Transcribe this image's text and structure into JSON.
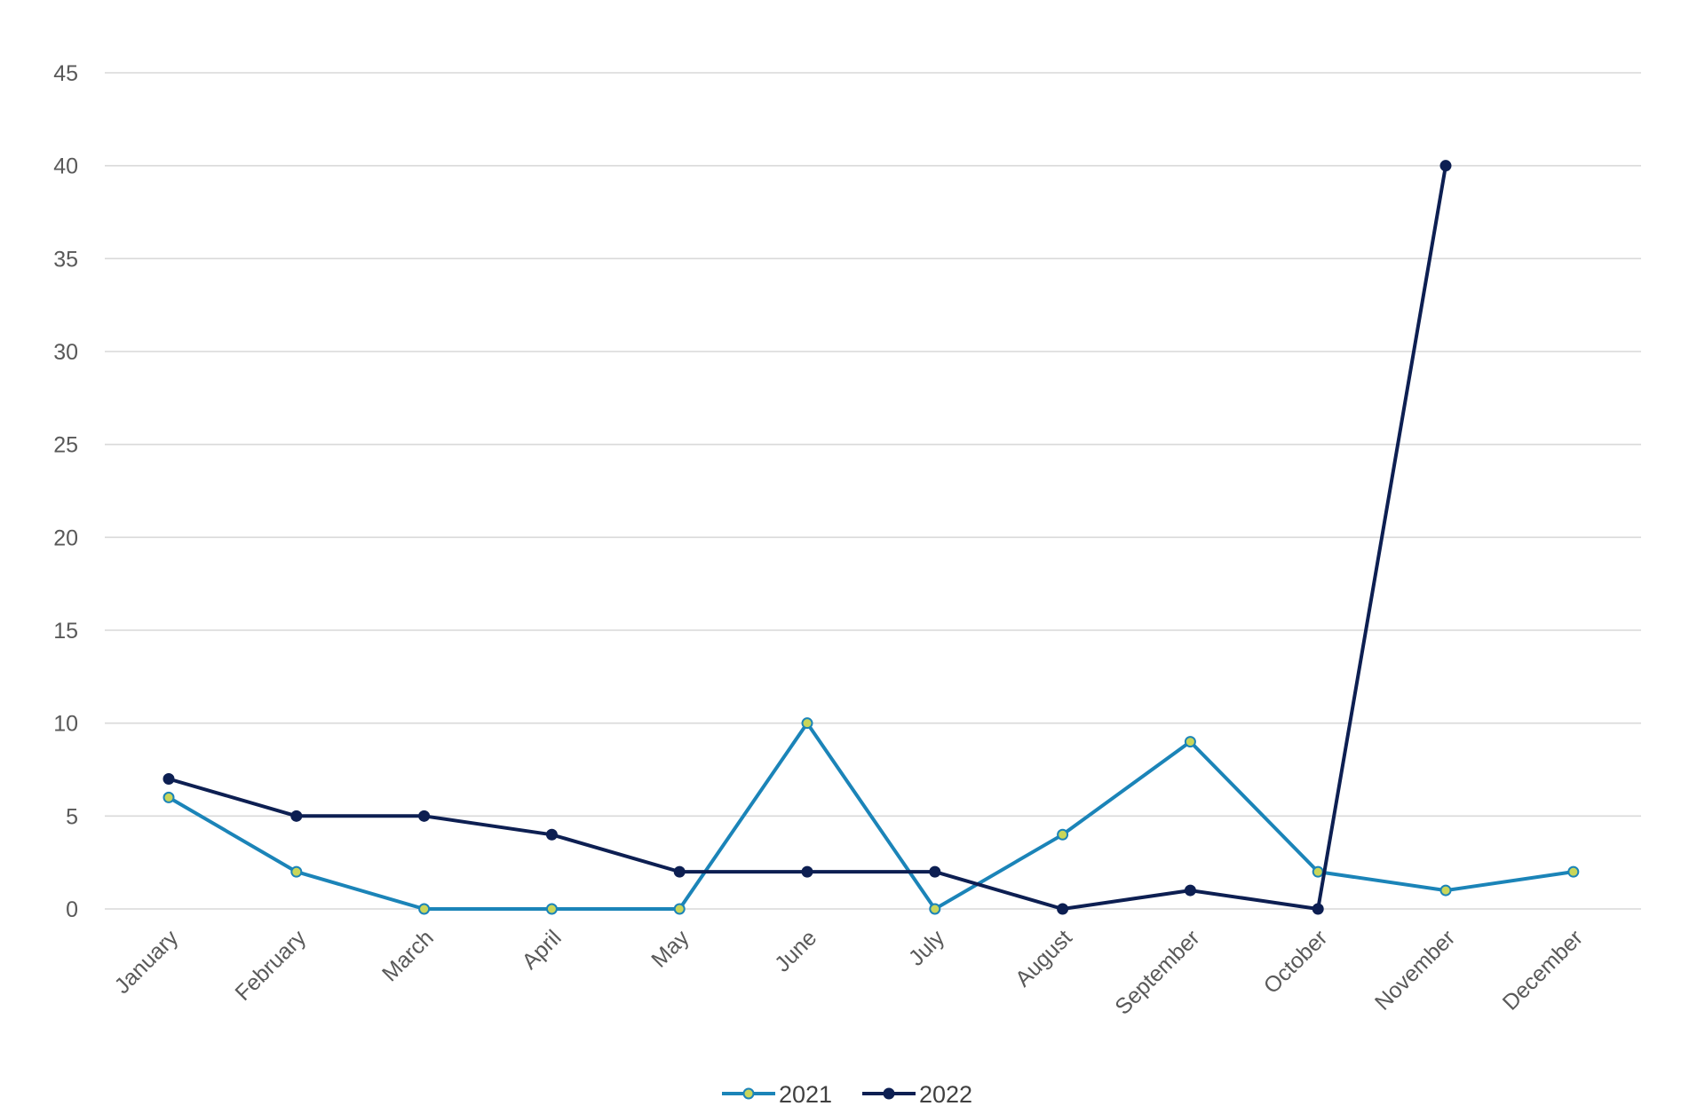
{
  "chart_data": {
    "type": "line",
    "title": "",
    "xlabel": "",
    "ylabel": "",
    "categories": [
      "January",
      "February",
      "March",
      "April",
      "May",
      "June",
      "July",
      "August",
      "September",
      "October",
      "November",
      "December"
    ],
    "y_ticks": [
      "0",
      "5",
      "10",
      "15",
      "20",
      "25",
      "30",
      "35",
      "40",
      "45"
    ],
    "ylim": [
      0,
      45
    ],
    "grid": true,
    "legend": "bottom",
    "series": [
      {
        "name": "2021",
        "color": "#1b84b8",
        "marker_fill": "#c9d65a",
        "values": [
          6,
          2,
          0,
          0,
          0,
          10,
          0,
          4,
          9,
          2,
          1,
          2
        ]
      },
      {
        "name": "2022",
        "color": "#0d1f52",
        "marker_fill": "#0d1f52",
        "values": [
          7,
          5,
          5,
          4,
          2,
          2,
          2,
          0,
          1,
          0,
          40,
          null
        ]
      }
    ]
  }
}
